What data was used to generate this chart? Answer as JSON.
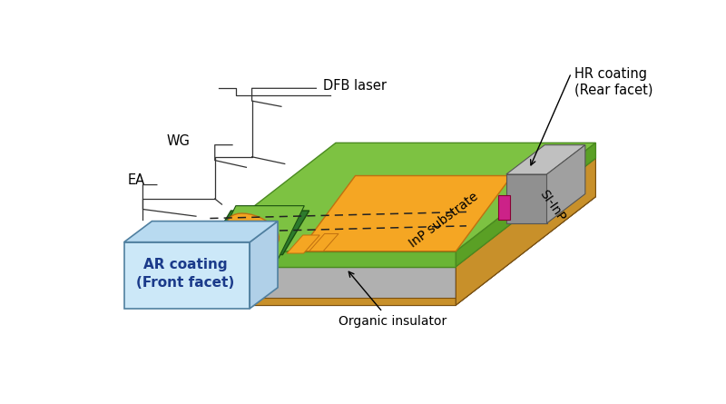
{
  "colors": {
    "green_top": "#7dc242",
    "green_top_dark": "#5a9e2a",
    "green_front": "#6ab535",
    "green_right": "#5aa025",
    "orange": "#f5a623",
    "gray_top": "#c8c8c8",
    "gray_front": "#b0b0b0",
    "gray_right": "#a8a8a8",
    "gray_si": "#b8b8b8",
    "brown": "#c8902a",
    "light_blue": "#cce8f8",
    "light_blue_side": "#b0d0e8",
    "light_blue_top": "#b8daf0",
    "dark_green": "#2d7a2d",
    "magenta": "#cc2288",
    "pink": "#ff99cc",
    "yellow": "#ffff00",
    "white": "#ffffff",
    "black": "#000000",
    "rear_gray": "#a0a0a0",
    "rear_top": "#c0c0c0",
    "rear_front": "#909090"
  },
  "labels": {
    "dfb_laser": "DFB laser",
    "wg": "WG",
    "ea": "EA",
    "ar_coating": "AR coating\n(Front facet)",
    "hr_coating": "HR coating\n(Rear facet)",
    "inp_substrate": "InP substrate",
    "organic_insulator": "Organic insulator",
    "si_inp": "SI-InP"
  }
}
